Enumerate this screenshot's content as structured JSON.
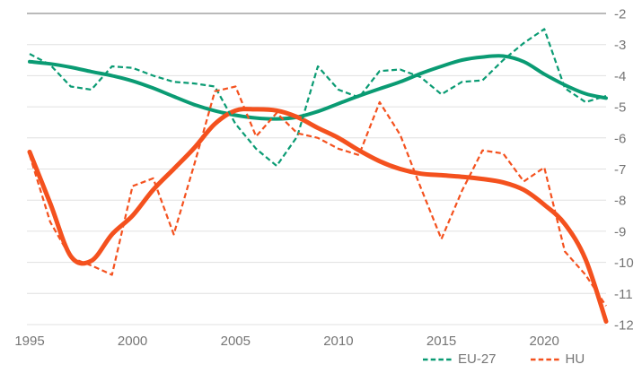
{
  "chart_data": {
    "type": "line",
    "title": "",
    "xlabel": "",
    "ylabel": "",
    "x": [
      1995,
      1996,
      1997,
      1998,
      1999,
      2000,
      2001,
      2002,
      2003,
      2004,
      2005,
      2006,
      2007,
      2008,
      2009,
      2010,
      2011,
      2012,
      2013,
      2014,
      2015,
      2016,
      2017,
      2018,
      2019,
      2020,
      2021,
      2022,
      2023
    ],
    "series": [
      {
        "name": "EU-27",
        "role": "raw",
        "style": "dashed",
        "color": "#0a9b73",
        "values": [
          -3.3,
          -3.65,
          -4.35,
          -4.45,
          -3.7,
          -3.75,
          -4.0,
          -4.2,
          -4.25,
          -4.35,
          -5.55,
          -6.35,
          -6.9,
          -5.95,
          -3.7,
          -4.45,
          -4.7,
          -3.85,
          -3.8,
          -4.05,
          -4.6,
          -4.2,
          -4.15,
          -3.5,
          -2.95,
          -2.5,
          -4.4,
          -4.85,
          -4.65
        ]
      },
      {
        "name": "HU",
        "role": "raw",
        "style": "dashed",
        "color": "#f4511e",
        "values": [
          -6.55,
          -8.7,
          -9.85,
          -10.1,
          -10.4,
          -7.55,
          -7.3,
          -9.1,
          -6.85,
          -4.5,
          -4.35,
          -5.95,
          -5.2,
          -5.85,
          -6.0,
          -6.35,
          -6.55,
          -4.85,
          -5.9,
          -7.6,
          -9.25,
          -7.7,
          -6.4,
          -6.5,
          -7.4,
          -6.95,
          -9.65,
          -10.4,
          -11.4
        ]
      },
      {
        "name": "EU-27 trend",
        "role": "trend",
        "style": "solid",
        "color": "#0a9b73",
        "values": [
          -3.55,
          -3.62,
          -3.73,
          -3.87,
          -4.0,
          -4.17,
          -4.4,
          -4.67,
          -4.93,
          -5.13,
          -5.27,
          -5.36,
          -5.39,
          -5.33,
          -5.15,
          -4.9,
          -4.65,
          -4.42,
          -4.2,
          -3.93,
          -3.7,
          -3.5,
          -3.4,
          -3.37,
          -3.55,
          -3.95,
          -4.3,
          -4.58,
          -4.72
        ]
      },
      {
        "name": "HU trend",
        "role": "trend",
        "style": "solid",
        "color": "#f4511e",
        "values": [
          -6.45,
          -8.1,
          -9.8,
          -9.95,
          -9.1,
          -8.5,
          -7.67,
          -7.0,
          -6.32,
          -5.55,
          -5.12,
          -5.08,
          -5.12,
          -5.33,
          -5.68,
          -6.0,
          -6.4,
          -6.75,
          -7.0,
          -7.15,
          -7.2,
          -7.25,
          -7.32,
          -7.43,
          -7.67,
          -8.15,
          -8.77,
          -9.9,
          -11.9
        ]
      }
    ],
    "x_ticks": [
      1995,
      2000,
      2005,
      2010,
      2015,
      2020
    ],
    "y_ticks": [
      -2,
      -3,
      -4,
      -5,
      -6,
      -7,
      -8,
      -9,
      -10,
      -11,
      -12
    ],
    "xlim": [
      1994.87,
      2023
    ],
    "ylim": [
      -12.0,
      -2
    ],
    "grid": "horizontal",
    "legend": {
      "position": "bottom-right",
      "items": [
        "EU-27",
        "HU"
      ]
    },
    "colors": {
      "eu27": "#0a9b73",
      "hu": "#f4511e",
      "grid": "#e0e0e0",
      "top_axis_line": "#757575",
      "tick_text": "#757575"
    }
  }
}
